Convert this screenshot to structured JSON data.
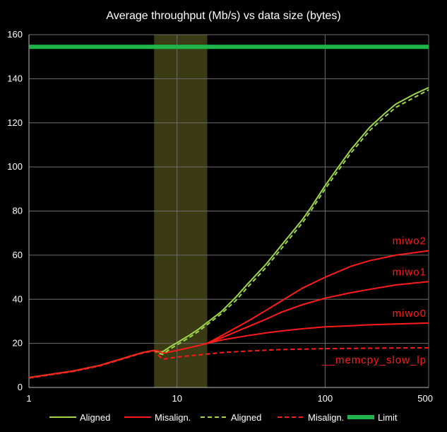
{
  "chart_data": {
    "type": "line",
    "title": "Average throughput (Mb/s) vs data size (bytes)",
    "xlabel": "",
    "ylabel": "",
    "x_scale": "log",
    "xlim": [
      1,
      500
    ],
    "ylim": [
      0,
      160
    ],
    "x_ticks": [
      1,
      10,
      100,
      500
    ],
    "y_ticks": [
      0,
      20,
      40,
      60,
      80,
      100,
      120,
      140,
      160
    ],
    "grid": true,
    "legend_position": "bottom",
    "highlight_band": {
      "x_from": 7,
      "x_to": 16,
      "color": "#3a3a14"
    },
    "colors": {
      "aligned": "#9dd64b",
      "misaligned": "#ff1a1a",
      "limit": "#1fb54a",
      "grid": "#6e6e6e"
    },
    "series": [
      {
        "name": "Aligned",
        "color": "#9dd64b",
        "dash": "solid",
        "x": [
          1,
          2,
          3,
          4,
          5,
          6,
          7,
          7.5,
          8,
          9,
          10,
          12,
          14,
          16,
          20,
          25,
          30,
          40,
          50,
          60,
          70,
          80,
          100,
          120,
          150,
          200,
          250,
          300,
          400,
          500
        ],
        "y": [
          4.5,
          7.5,
          10,
          12.5,
          14.5,
          16,
          16.8,
          16.2,
          16.2,
          18.5,
          20.3,
          23.5,
          26.5,
          29.5,
          34.5,
          41,
          47,
          56,
          64,
          70.5,
          76,
          81.5,
          91.5,
          99,
          108,
          118,
          124,
          128.5,
          133,
          136
        ]
      },
      {
        "name": "Misalign.",
        "color": "#ff1a1a",
        "dash": "solid",
        "x": [
          1,
          2,
          3,
          4,
          5,
          6,
          7,
          7.5,
          8,
          10,
          12,
          14,
          16
        ],
        "y": [
          4.5,
          7.5,
          10,
          12.5,
          14.5,
          16,
          16.8,
          16.5,
          15.5,
          16.8,
          18,
          19,
          20
        ]
      },
      {
        "name": "Aligned",
        "color": "#9dd64b",
        "dash": "dashed",
        "x": [
          1,
          2,
          3,
          4,
          5,
          6,
          7,
          7.5,
          8,
          9,
          10,
          12,
          14,
          16,
          20,
          25,
          30,
          40,
          50,
          60,
          70,
          80,
          100,
          120,
          150,
          200,
          250,
          300,
          400,
          500
        ],
        "y": [
          4.3,
          7.3,
          9.8,
          12.3,
          14.3,
          15.8,
          16.6,
          15.5,
          15,
          17.5,
          19.3,
          22.5,
          25.5,
          28.5,
          33.5,
          39.5,
          45.5,
          54.5,
          62.5,
          69,
          74.5,
          80,
          90,
          97.5,
          106.5,
          116.5,
          122.5,
          127,
          131.5,
          135
        ]
      },
      {
        "name": "Misalign.",
        "color": "#ff1a1a",
        "dash": "dashed",
        "x": [
          1,
          2,
          3,
          4,
          5,
          6,
          7,
          7.5,
          8,
          10,
          20,
          30,
          50,
          100,
          200,
          300,
          500
        ],
        "y": [
          4.3,
          7.3,
          9.8,
          12.3,
          14.3,
          15.8,
          16.6,
          14.5,
          12.8,
          13.8,
          15.8,
          16.5,
          17.2,
          17.6,
          17.8,
          17.9,
          18
        ]
      },
      {
        "name": "Limit",
        "color": "#1fb54a",
        "dash": "thick",
        "x": [
          1,
          500
        ],
        "y": [
          154.5,
          154.5
        ]
      }
    ],
    "annotated_curves": [
      {
        "label": "miwo2",
        "color": "#ff1a1a",
        "dash": "solid",
        "x": [
          16,
          20,
          30,
          40,
          50,
          70,
          100,
          150,
          200,
          300,
          500
        ],
        "y": [
          20,
          23.5,
          30,
          35,
          39,
          45,
          50,
          55,
          57.5,
          60,
          62
        ]
      },
      {
        "label": "miwo1",
        "color": "#ff1a1a",
        "dash": "solid",
        "x": [
          16,
          20,
          30,
          40,
          50,
          70,
          100,
          150,
          200,
          300,
          500
        ],
        "y": [
          20,
          22.5,
          27.5,
          31,
          34,
          37.5,
          40.5,
          43,
          44.5,
          46.5,
          48
        ]
      },
      {
        "label": "miwo0",
        "color": "#ff1a1a",
        "dash": "solid",
        "x": [
          16,
          20,
          30,
          40,
          50,
          70,
          100,
          150,
          200,
          300,
          500
        ],
        "y": [
          20,
          21.5,
          23.5,
          24.8,
          25.6,
          26.6,
          27.5,
          28,
          28.4,
          28.8,
          29.2
        ]
      },
      {
        "label": "__memcpy_slow_lp",
        "color": "#ff1a1a",
        "dash": "dashed",
        "x": [],
        "y": []
      }
    ],
    "legend": [
      {
        "label": "Aligned",
        "color": "#9dd64b",
        "dash": "solid"
      },
      {
        "label": "Misalign.",
        "color": "#ff1a1a",
        "dash": "solid"
      },
      {
        "label": "Aligned",
        "color": "#9dd64b",
        "dash": "dashed"
      },
      {
        "label": "Misalign.",
        "color": "#ff1a1a",
        "dash": "dashed"
      },
      {
        "label": "Limit",
        "color": "#1fb54a",
        "dash": "thick"
      }
    ]
  }
}
